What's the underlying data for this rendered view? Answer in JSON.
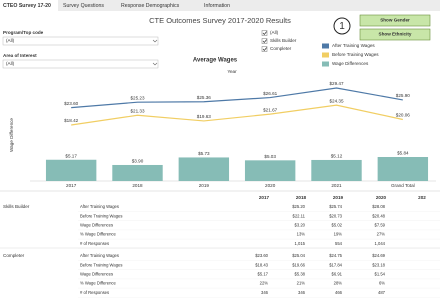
{
  "tabs": [
    "CTEO Survey 17-20",
    "Survey Questions",
    "Response Demographics",
    "Information"
  ],
  "header": {
    "title": "CTE Outcomes Survey 2017-2020 Results"
  },
  "filters": [
    {
      "label": "Program/Top code",
      "value": "(All)"
    },
    {
      "label": "Area of Interest",
      "value": "(All)"
    }
  ],
  "checkboxes": [
    "(All)",
    "Skills Builder",
    "Completer"
  ],
  "annotation": "1",
  "buttons": [
    "Show Gender",
    "Show Ethnicity"
  ],
  "chart_data": {
    "type": "combo",
    "title": "Average Wages",
    "x_label": "Year",
    "y_label": "Wage Difference",
    "categories": [
      "2017",
      "2018",
      "2019",
      "2020",
      "2021",
      "Grand Total"
    ],
    "series": [
      {
        "name": "After Training Wages",
        "type": "line",
        "color": "#4e79a7",
        "values": [
          23.6,
          25.23,
          25.36,
          26.61,
          29.47,
          25.9
        ],
        "value_labels": [
          "$23.60",
          "$25.23",
          "$25.36",
          "$26.61",
          "$29.47",
          "$25.90"
        ]
      },
      {
        "name": "Before Training Wages",
        "type": "line",
        "color": "#f1ce63",
        "values": [
          18.42,
          21.33,
          19.63,
          21.67,
          24.35,
          20.06
        ],
        "value_labels": [
          "$18.42",
          "$21.33",
          "$19.63",
          "$21.67",
          "$24.35",
          "$20.06"
        ]
      },
      {
        "name": "Wage Differences",
        "type": "bar",
        "color": "#86bcb6",
        "values": [
          5.17,
          3.9,
          5.73,
          5.03,
          5.12,
          5.84
        ],
        "value_labels": [
          "$5.17",
          "$3.90",
          "$5.73",
          "$5.03",
          "$5.12",
          "$5.84"
        ]
      }
    ]
  },
  "table": {
    "columns": [
      "2017",
      "2018",
      "2019",
      "2020",
      "202"
    ],
    "rows": [
      {
        "group": "Skills Builder",
        "label": "After Training Wages",
        "cells": [
          null,
          "$25.20",
          "$25.74",
          "$28.08"
        ]
      },
      {
        "label": "Before Training Wages",
        "cells": [
          null,
          "$22.11",
          "$20.73",
          "$20.48"
        ]
      },
      {
        "label": "Wage Differences",
        "cells": [
          null,
          "$3.20",
          "$5.02",
          "$7.59"
        ]
      },
      {
        "label": "% Wage Difference",
        "cells": [
          null,
          "13%",
          "19%",
          "27%"
        ]
      },
      {
        "label": "# of Responses",
        "cells": [
          null,
          "1,015",
          "554",
          "1,044"
        ]
      },
      {
        "group": "Completer",
        "label": "After Training Wages",
        "cells": [
          "$23.60",
          "$25.04",
          "$24.75",
          "$24.69"
        ]
      },
      {
        "label": "Before Training Wages",
        "cells": [
          "$18.43",
          "$19.66",
          "$17.84",
          "$23.18"
        ]
      },
      {
        "label": "Wage Differences",
        "cells": [
          "$5.17",
          "$5.38",
          "$6.91",
          "$1.54"
        ]
      },
      {
        "label": "% Wage Difference",
        "cells": [
          "22%",
          "21%",
          "28%",
          "6%"
        ]
      },
      {
        "label": "# of Responses",
        "cells": [
          "346",
          "346",
          "466",
          "487"
        ]
      }
    ]
  }
}
